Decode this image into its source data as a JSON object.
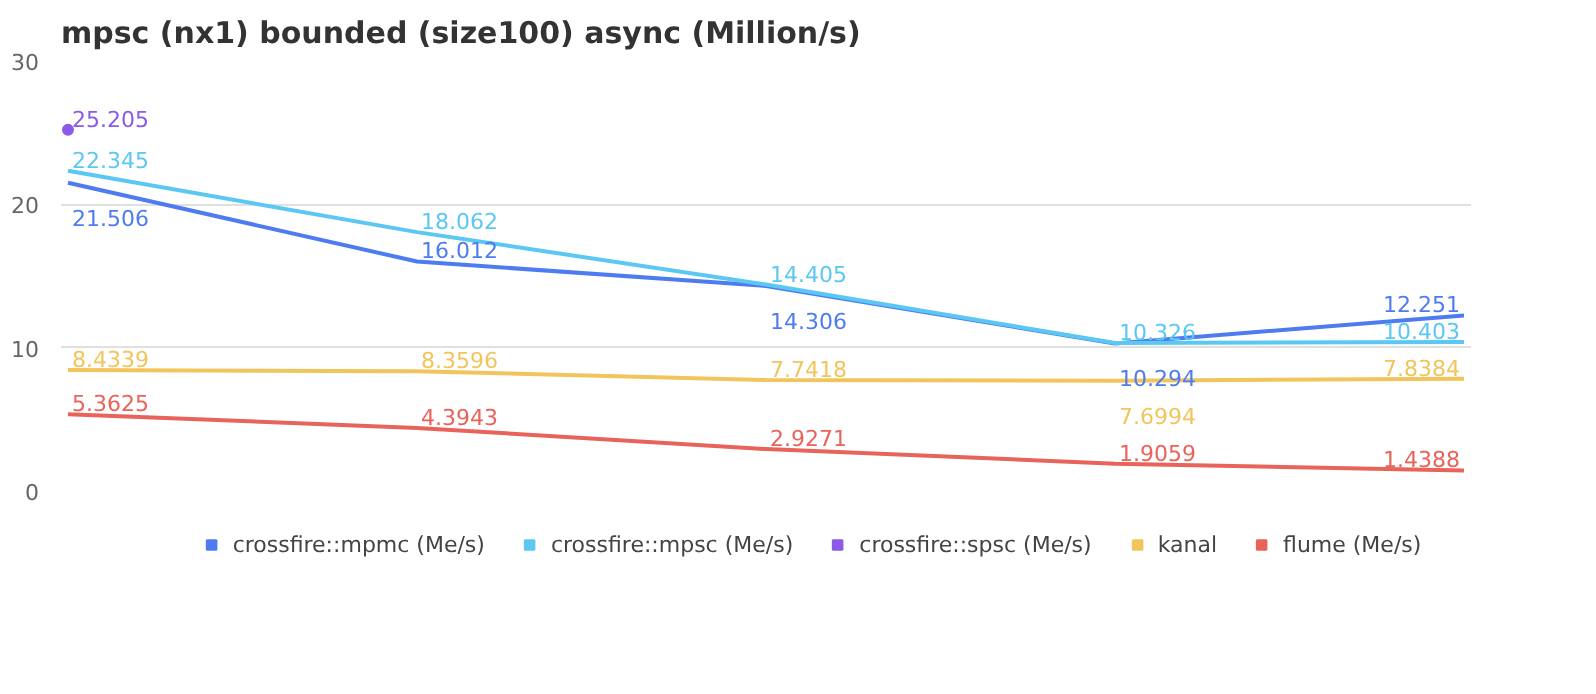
{
  "chart_data": {
    "type": "line",
    "title": "mpsc (nx1) bounded (size100) async (Million/s)",
    "categories": [
      null,
      null,
      null,
      null,
      null
    ],
    "series": [
      {
        "name": "crossfire::mpmc (Me/s)",
        "color": "#4e7cf0",
        "values": [
          21.506,
          16.012,
          14.306,
          10.294,
          12.251
        ]
      },
      {
        "name": "crossfire::mpsc (Me/s)",
        "color": "#5ac8f2",
        "values": [
          22.345,
          18.062,
          14.405,
          10.326,
          10.403
        ]
      },
      {
        "name": "crossfire::spsc (Me/s)",
        "color": "#8d5ae8",
        "values": [
          25.205,
          null,
          null,
          null,
          null
        ],
        "marker": "circle"
      },
      {
        "name": "kanal",
        "color": "#f2c55c",
        "values": [
          8.4339,
          8.3596,
          7.7418,
          7.6994,
          7.8384
        ]
      },
      {
        "name": "flume (Me/s)",
        "color": "#e8635a",
        "values": [
          5.3625,
          4.3943,
          2.9271,
          1.9059,
          1.4388
        ]
      }
    ],
    "ylim": [
      0,
      30
    ],
    "yticks": [
      0,
      10,
      20,
      30
    ],
    "grid": "y",
    "legend": "bottom",
    "data_labels": true,
    "line_style": "solid"
  }
}
